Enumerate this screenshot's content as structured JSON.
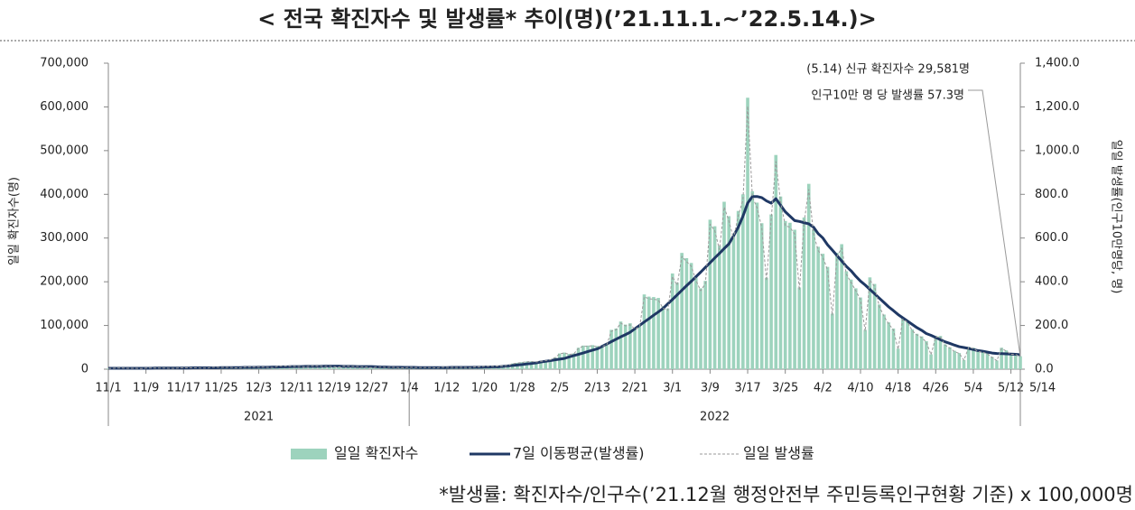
{
  "chart_data": {
    "type": "combo",
    "title": "< 전국 확진자수 및 발생률* 추이(명)(’21.11.1.~’22.5.14.)>",
    "footnote": "*발생률: 확진자수/인구수(’21.12월 행정안전부 주민등록인구현황 기준) x 100,000명",
    "y_label": "일일 확진자수(명)",
    "y2_label": "일일 발생률(인구10만명당, 명)",
    "annotations": [
      "(5.14) 신규 확진자수 29,581명",
      "인구10만 명 당 발생률 57.3명"
    ],
    "years": [
      "2021",
      "2022"
    ],
    "categories": [
      "11/1",
      null,
      null,
      null,
      null,
      null,
      null,
      null,
      "11/9",
      null,
      null,
      null,
      null,
      null,
      null,
      null,
      "11/17",
      null,
      null,
      null,
      null,
      null,
      null,
      null,
      "11/25",
      null,
      null,
      null,
      null,
      null,
      null,
      null,
      "12/3",
      null,
      null,
      null,
      null,
      null,
      null,
      null,
      "12/11",
      null,
      null,
      null,
      null,
      null,
      null,
      null,
      "12/19",
      null,
      null,
      null,
      null,
      null,
      null,
      null,
      "12/27",
      null,
      null,
      null,
      null,
      null,
      null,
      null,
      "1/4",
      null,
      null,
      null,
      null,
      null,
      null,
      null,
      "1/12",
      null,
      null,
      null,
      null,
      null,
      null,
      null,
      "1/20",
      null,
      null,
      null,
      null,
      null,
      null,
      null,
      "1/28",
      null,
      null,
      null,
      null,
      null,
      null,
      null,
      "2/5",
      null,
      null,
      null,
      null,
      null,
      null,
      null,
      "2/13",
      null,
      null,
      null,
      null,
      null,
      null,
      null,
      "2/21",
      null,
      null,
      null,
      null,
      null,
      null,
      null,
      "3/1",
      null,
      null,
      null,
      null,
      null,
      null,
      null,
      "3/9",
      null,
      null,
      null,
      null,
      null,
      null,
      null,
      "3/17",
      null,
      null,
      null,
      null,
      null,
      null,
      null,
      "3/25",
      null,
      null,
      null,
      null,
      null,
      null,
      null,
      "4/2",
      null,
      null,
      null,
      null,
      null,
      null,
      null,
      "4/10",
      null,
      null,
      null,
      null,
      null,
      null,
      null,
      "4/18",
      null,
      null,
      null,
      null,
      null,
      null,
      null,
      "4/26",
      null,
      null,
      null,
      null,
      null,
      null,
      null,
      "5/4",
      null,
      null,
      null,
      null,
      null,
      null,
      null,
      "5/12",
      null,
      "5/14"
    ],
    "series": [
      {
        "name": "일일 확진자수",
        "type": "bar",
        "color": "#9dd3bd",
        "values": [
          1700,
          2300,
          2500,
          2400,
          2300,
          2200,
          2100,
          1800,
          2500,
          2800,
          2600,
          2500,
          2400,
          2300,
          2100,
          3000,
          3300,
          3300,
          3000,
          2900,
          2800,
          2700,
          3900,
          4100,
          4000,
          4000,
          3900,
          3300,
          3300,
          5100,
          5100,
          5300,
          5400,
          5100,
          4300,
          4300,
          6500,
          7100,
          7000,
          7000,
          6900,
          6100,
          5500,
          7800,
          7700,
          7400,
          7300,
          7000,
          6200,
          5000,
          7400,
          7000,
          6900,
          6200,
          5800,
          5400,
          3800,
          5400,
          5000,
          4900,
          4500,
          4400,
          3800,
          3000,
          4400,
          4100,
          3700,
          3500,
          3400,
          3400,
          3000,
          4400,
          4200,
          4500,
          4200,
          4500,
          4200,
          3800,
          5800,
          5800,
          6600,
          6800,
          6800,
          7600,
          7500,
          8600,
          13000,
          14500,
          16000,
          17500,
          18000,
          17000,
          18500,
          20000,
          22000,
          27000,
          36000,
          38000,
          35000,
          36000,
          49000,
          54000,
          54000,
          55000,
          53000,
          54000,
          57000,
          90000,
          93000,
          109000,
          102000,
          105000,
          95000,
          99000,
          171000,
          166000,
          165000,
          163000,
          144000,
          139000,
          219000,
          198000,
          266000,
          254000,
          243000,
          210000,
          185000,
          202000,
          342000,
          327000,
          282000,
          383000,
          350000,
          309000,
          362000,
          400000,
          621000,
          407000,
          381000,
          334000,
          209000,
          354000,
          490000,
          395000,
          339000,
          335000,
          319000,
          187000,
          347000,
          424000,
          320000,
          280000,
          264000,
          234000,
          127000,
          266000,
          286000,
          224000,
          205000,
          185000,
          164000,
          90000,
          210000,
          195000,
          148000,
          125000,
          107000,
          93000,
          47000,
          118000,
          111000,
          91000,
          81000,
          75000,
          64000,
          34000,
          76000,
          76000,
          57000,
          50000,
          42000,
          37000,
          21000,
          51000,
          49000,
          42000,
          40000,
          36000,
          28000,
          20000,
          49000,
          43000,
          35000,
          35000,
          29581
        ]
      },
      {
        "name": "7일 이동평균(발생률)",
        "type": "line",
        "axis": "y2",
        "color": "#1f3864",
        "values": [
          4,
          4,
          4,
          4,
          4,
          4,
          4,
          4,
          4,
          4,
          5,
          5,
          5,
          5,
          5,
          5,
          5,
          5,
          6,
          6,
          6,
          6,
          6,
          6,
          7,
          7,
          7,
          7,
          7,
          8,
          8,
          8,
          9,
          9,
          9,
          10,
          10,
          11,
          11,
          12,
          12,
          12,
          13,
          13,
          13,
          13,
          14,
          14,
          14,
          14,
          13,
          13,
          13,
          12,
          12,
          12,
          12,
          11,
          10,
          10,
          9,
          9,
          9,
          8,
          8,
          8,
          7,
          7,
          7,
          7,
          7,
          7,
          7,
          8,
          8,
          8,
          8,
          8,
          9,
          9,
          10,
          10,
          11,
          11,
          13,
          15,
          17,
          19,
          21,
          24,
          26,
          29,
          33,
          36,
          39,
          43,
          46,
          49,
          56,
          62,
          68,
          74,
          81,
          87,
          93,
          104,
          115,
          126,
          137,
          148,
          158,
          169,
          185,
          200,
          216,
          231,
          247,
          262,
          278,
          299,
          319,
          340,
          361,
          382,
          402,
          423,
          444,
          466,
          487,
          509,
          530,
          552,
          573,
          610,
          650,
          700,
          760,
          790,
          790,
          785,
          770,
          760,
          780,
          750,
          720,
          700,
          680,
          676,
          670,
          665,
          650,
          620,
          600,
          569,
          545,
          520,
          495,
          470,
          450,
          425,
          403,
          385,
          365,
          345,
          325,
          305,
          285,
          268,
          250,
          235,
          220,
          205,
          190,
          178,
          163,
          155,
          145,
          135,
          125,
          118,
          110,
          103,
          99,
          95,
          90,
          85,
          82,
          78,
          74,
          72,
          71,
          70,
          69,
          68,
          66
        ]
      },
      {
        "name": "일일 발생률",
        "type": "line",
        "axis": "y2",
        "dashed": true,
        "color": "#9a9a9a",
        "values": [
          3,
          4,
          5,
          5,
          4,
          4,
          4,
          3,
          5,
          5,
          5,
          5,
          5,
          4,
          4,
          6,
          6,
          6,
          6,
          6,
          5,
          5,
          8,
          8,
          8,
          8,
          8,
          6,
          6,
          10,
          10,
          10,
          10,
          10,
          8,
          8,
          13,
          14,
          14,
          14,
          13,
          12,
          11,
          15,
          15,
          14,
          14,
          14,
          12,
          10,
          14,
          14,
          13,
          12,
          11,
          10,
          7,
          10,
          10,
          9,
          9,
          9,
          7,
          6,
          9,
          8,
          7,
          7,
          7,
          7,
          6,
          9,
          8,
          9,
          8,
          9,
          8,
          7,
          11,
          11,
          13,
          13,
          13,
          15,
          15,
          17,
          25,
          28,
          31,
          34,
          35,
          33,
          36,
          39,
          43,
          52,
          70,
          74,
          68,
          70,
          95,
          105,
          105,
          107,
          103,
          105,
          110,
          174,
          180,
          211,
          198,
          203,
          184,
          192,
          331,
          322,
          320,
          316,
          279,
          269,
          424,
          384,
          516,
          492,
          471,
          407,
          359,
          391,
          663,
          634,
          547,
          742,
          678,
          599,
          702,
          775,
          1203,
          789,
          738,
          647,
          405,
          686,
          950,
          766,
          657,
          649,
          618,
          362,
          672,
          822,
          620,
          543,
          512,
          453,
          246,
          516,
          554,
          434,
          397,
          359,
          318,
          174,
          407,
          378,
          287,
          242,
          207,
          180,
          91,
          229,
          215,
          176,
          157,
          145,
          124,
          66,
          147,
          147,
          110,
          97,
          81,
          72,
          41,
          99,
          95,
          81,
          78,
          70,
          54,
          39,
          95,
          83,
          68,
          68,
          57.3
        ]
      }
    ],
    "ylim": [
      0,
      700000
    ],
    "yticks": [
      0,
      {
        "value": 100000,
        "label": "100,000"
      },
      {
        "value": 200000,
        "label": "200,000"
      },
      {
        "value": 300000,
        "label": "300,000"
      },
      {
        "value": 400000,
        "label": "400,000"
      },
      {
        "value": 500000,
        "label": "500,000"
      },
      {
        "value": 600000,
        "label": "600,000"
      },
      {
        "value": 700000,
        "label": "700,000"
      }
    ],
    "y2lim": [
      0,
      1400
    ],
    "y2ticks": [
      {
        "value": 0,
        "label": "0.0"
      },
      {
        "value": 200,
        "label": "200.0"
      },
      {
        "value": 400,
        "label": "400.0"
      },
      {
        "value": 600,
        "label": "600.0"
      },
      {
        "value": 800,
        "label": "800.0"
      },
      {
        "value": 1000,
        "label": "1,000.0"
      },
      {
        "value": 1200,
        "label": "1,200.0"
      },
      {
        "value": 1400,
        "label": "1,400.0"
      }
    ]
  }
}
